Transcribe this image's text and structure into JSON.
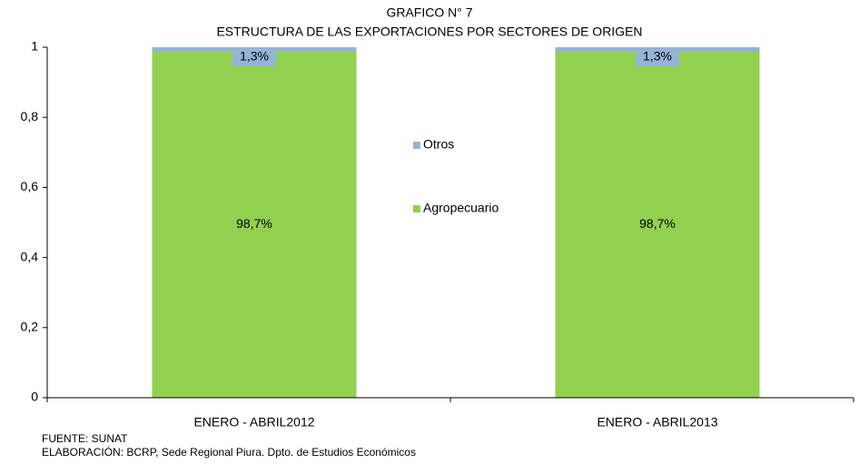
{
  "chart_data": {
    "type": "stacked-bar",
    "title": "GRAFICO N° 7",
    "subtitle": "ESTRUCTURA DE LAS EXPORTACIONES POR SECTORES DE ORIGEN",
    "categories": [
      "ENERO - ABRIL2012",
      "ENERO - ABRIL2013"
    ],
    "series": [
      {
        "name": "Agropecuario",
        "color": "#92d050",
        "values": [
          0.987,
          0.987
        ],
        "value_labels": [
          "98,7%",
          "98,7%"
        ]
      },
      {
        "name": "Otros",
        "color": "#95b3d7",
        "values": [
          0.013,
          0.013
        ],
        "value_labels": [
          "1,3%",
          "1,3%"
        ]
      }
    ],
    "ylim": [
      0,
      1
    ],
    "yticks": [
      0,
      {
        "value": 0.2,
        "label": "0,2"
      },
      {
        "value": 0.4,
        "label": "0,4"
      },
      {
        "value": 0.6,
        "label": "0,6"
      },
      {
        "value": 0.8,
        "label": "0,8"
      },
      1
    ],
    "legend": "center",
    "source": "FUENTE: SUNAT",
    "note": "ELABORACIÓN: BCRP, Sede Regional Piura. Dpto. de Estudios Económicos"
  }
}
